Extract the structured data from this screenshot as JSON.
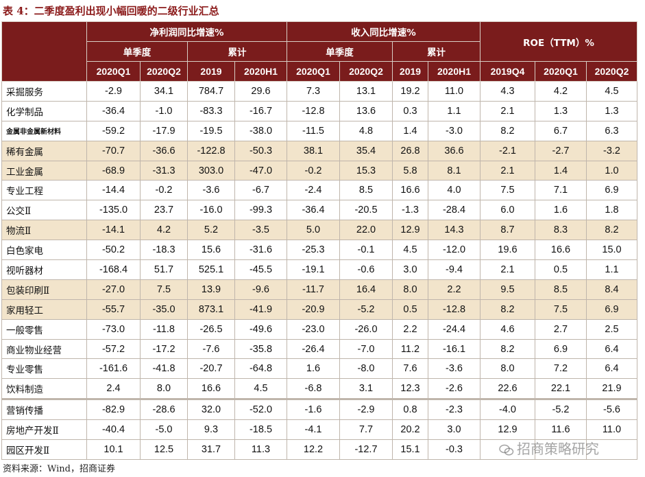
{
  "title": "表 4：二季度盈利出现小幅回暖的二级行业汇总",
  "header": {
    "group_profit": "净利润同比增速%",
    "group_revenue": "收入同比增速%",
    "group_roe": "ROE（TTM）%",
    "single_quarter": "单季度",
    "cumulative": "累计",
    "columns": [
      "2020Q1",
      "2020Q2",
      "2019",
      "2020H1",
      "2020Q1",
      "2020Q2",
      "2019",
      "2020H1",
      "2019Q4",
      "2020Q1",
      "2020Q2"
    ]
  },
  "rows": [
    {
      "name": "采掘服务",
      "values": [
        "-2.9",
        "34.1",
        "784.7",
        "29.6",
        "7.3",
        "13.1",
        "19.2",
        "11.0",
        "4.3",
        "4.2",
        "4.5"
      ]
    },
    {
      "name": "化学制品",
      "values": [
        "-36.4",
        "-1.0",
        "-83.3",
        "-16.7",
        "-12.8",
        "13.6",
        "0.3",
        "1.1",
        "2.1",
        "1.3",
        "1.3"
      ]
    },
    {
      "name": "金属非金属新材料",
      "values": [
        "-59.2",
        "-17.9",
        "-19.5",
        "-38.0",
        "-11.5",
        "4.8",
        "1.4",
        "-3.0",
        "8.2",
        "6.7",
        "6.3"
      ]
    },
    {
      "name": "稀有金属",
      "values": [
        "-70.7",
        "-36.6",
        "-122.8",
        "-50.3",
        "38.1",
        "35.4",
        "26.8",
        "36.6",
        "-2.1",
        "-2.7",
        "-3.2"
      ]
    },
    {
      "name": "工业金属",
      "values": [
        "-68.9",
        "-31.3",
        "303.0",
        "-47.0",
        "-0.2",
        "15.3",
        "5.8",
        "8.1",
        "2.1",
        "1.4",
        "1.0"
      ]
    },
    {
      "name": "专业工程",
      "values": [
        "-14.4",
        "-0.2",
        "-3.6",
        "-6.7",
        "-2.4",
        "8.5",
        "16.6",
        "4.0",
        "7.5",
        "7.1",
        "6.9"
      ]
    },
    {
      "name": "公交Ⅱ",
      "values": [
        "-135.0",
        "23.7",
        "-16.0",
        "-99.3",
        "-36.4",
        "-20.5",
        "-1.3",
        "-28.4",
        "6.0",
        "1.6",
        "1.8"
      ]
    },
    {
      "name": "物流Ⅱ",
      "values": [
        "-14.1",
        "4.2",
        "5.2",
        "-3.5",
        "5.0",
        "22.0",
        "12.9",
        "14.3",
        "8.7",
        "8.3",
        "8.2"
      ]
    },
    {
      "name": "白色家电",
      "values": [
        "-50.2",
        "-18.3",
        "15.6",
        "-31.6",
        "-25.3",
        "-0.1",
        "4.5",
        "-12.0",
        "19.6",
        "16.6",
        "15.0"
      ]
    },
    {
      "name": "视听器材",
      "values": [
        "-168.4",
        "51.7",
        "525.1",
        "-45.5",
        "-19.1",
        "-0.6",
        "3.0",
        "-9.4",
        "2.1",
        "0.5",
        "1.1"
      ]
    },
    {
      "name": "包装印刷Ⅱ",
      "values": [
        "-27.0",
        "7.5",
        "13.9",
        "-9.6",
        "-11.7",
        "16.4",
        "8.0",
        "2.2",
        "9.5",
        "8.5",
        "8.4"
      ]
    },
    {
      "name": "家用轻工",
      "values": [
        "-55.7",
        "-35.0",
        "873.1",
        "-41.9",
        "-20.9",
        "-5.2",
        "0.5",
        "-12.8",
        "8.2",
        "7.5",
        "6.9"
      ]
    },
    {
      "name": "一般零售",
      "values": [
        "-73.0",
        "-11.8",
        "-26.5",
        "-49.6",
        "-23.0",
        "-26.0",
        "2.2",
        "-24.4",
        "4.6",
        "2.7",
        "2.5"
      ]
    },
    {
      "name": "商业物业经营",
      "values": [
        "-57.2",
        "-17.2",
        "-7.6",
        "-35.8",
        "-26.4",
        "-7.0",
        "11.2",
        "-16.1",
        "8.2",
        "6.9",
        "6.4"
      ]
    },
    {
      "name": "专业零售",
      "values": [
        "-161.6",
        "-41.8",
        "-20.7",
        "-64.8",
        "1.6",
        "-8.0",
        "7.6",
        "-3.6",
        "8.0",
        "7.2",
        "6.4"
      ]
    },
    {
      "name": "饮料制造",
      "values": [
        "2.4",
        "8.0",
        "16.6",
        "4.5",
        "-6.8",
        "3.1",
        "12.3",
        "-2.6",
        "22.6",
        "22.1",
        "21.9"
      ]
    },
    {
      "name": "营销传播",
      "values": [
        "-82.9",
        "-28.6",
        "32.0",
        "-52.0",
        "-1.6",
        "-2.9",
        "0.8",
        "-2.3",
        "-4.0",
        "-5.2",
        "-5.6"
      ]
    },
    {
      "name": "房地产开发Ⅱ",
      "values": [
        "-40.4",
        "-5.0",
        "9.3",
        "-18.5",
        "-4.1",
        "7.7",
        "20.2",
        "3.0",
        "12.9",
        "11.6",
        "11.0"
      ]
    },
    {
      "name": "园区开发Ⅱ",
      "values": [
        "10.1",
        "12.5",
        "31.7",
        "11.3",
        "12.2",
        "-12.7",
        "15.1",
        "-0.3",
        "",
        "",
        ""
      ]
    }
  ],
  "source": "资料来源：Wind，招商证券",
  "watermark": "招商策略研究",
  "colors": {
    "header_bg": "#7a1c1c",
    "highlight_bg": "#f2e4cb",
    "title": "#8b1a1a"
  }
}
